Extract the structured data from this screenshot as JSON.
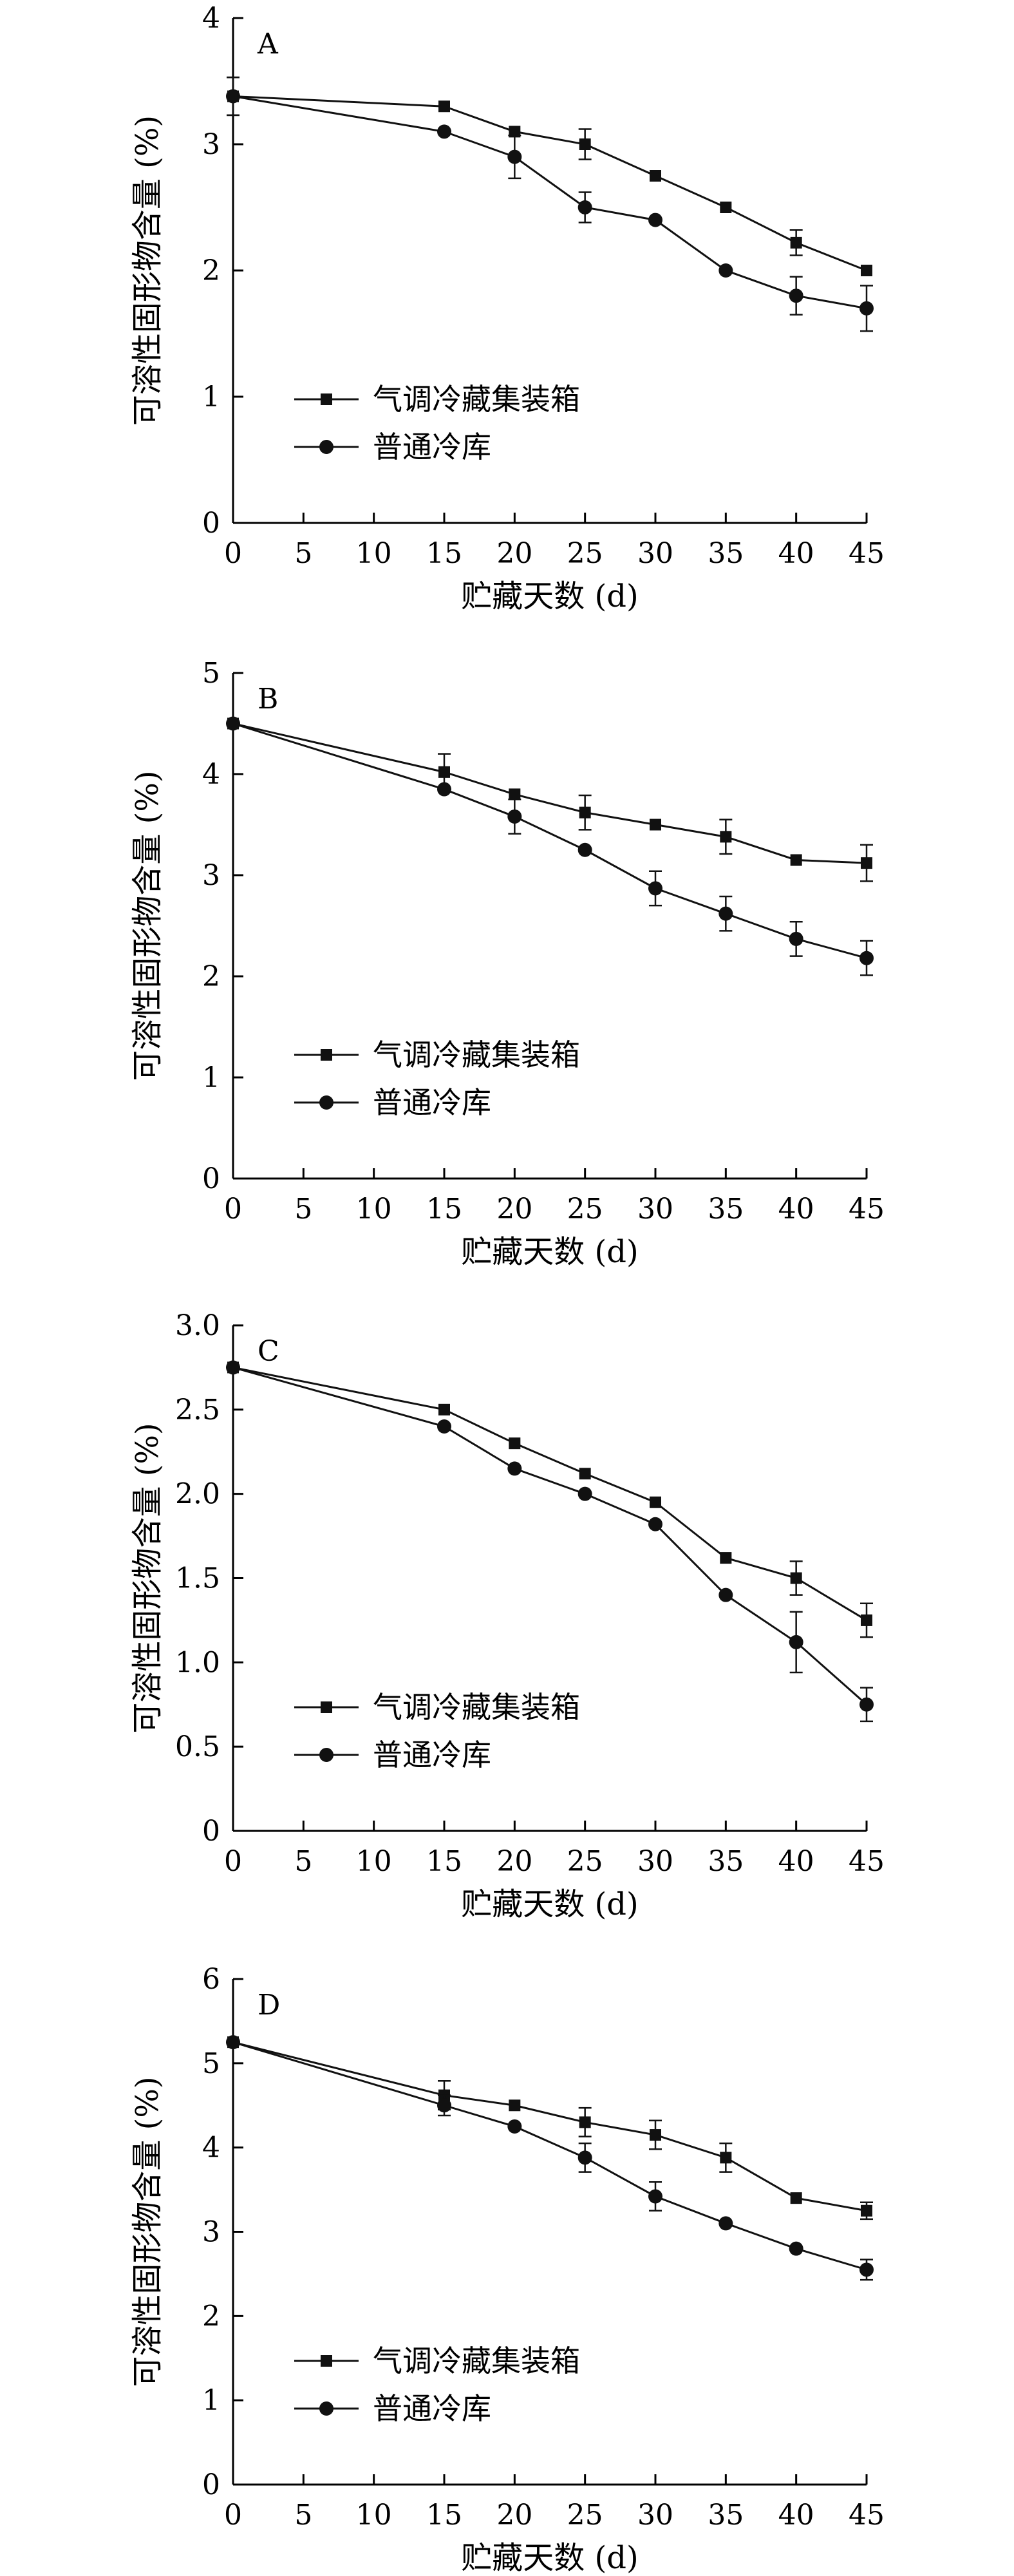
{
  "chart_data": [
    {
      "type": "line",
      "panel_label": "A",
      "title": "",
      "xlabel": "贮藏天数 (d)",
      "ylabel": "可溶性固形物含量 (%)",
      "x": [
        0,
        15,
        20,
        25,
        30,
        35,
        40,
        45
      ],
      "xlim": [
        0,
        45
      ],
      "xticks": [
        0,
        5,
        10,
        15,
        20,
        25,
        30,
        35,
        40,
        45
      ],
      "ylim": [
        0,
        4
      ],
      "yticks": [
        "0",
        "1",
        "2",
        "3",
        "4"
      ],
      "grid": false,
      "legend_position": "lower-left",
      "series": [
        {
          "name": "气调冷藏集装箱",
          "marker": "square",
          "values": [
            3.38,
            3.3,
            3.1,
            3.0,
            2.75,
            2.5,
            2.22,
            2.0
          ],
          "errors": [
            0.15,
            0.02,
            0.03,
            0.12,
            0.03,
            0.02,
            0.1,
            0.03
          ]
        },
        {
          "name": "普通冷库",
          "marker": "circle",
          "values": [
            3.38,
            3.1,
            2.9,
            2.5,
            2.4,
            2.0,
            1.8,
            1.7
          ],
          "errors": [
            0.15,
            0.02,
            0.17,
            0.12,
            0.02,
            0.02,
            0.15,
            0.18
          ]
        }
      ]
    },
    {
      "type": "line",
      "panel_label": "B",
      "title": "",
      "xlabel": "贮藏天数 (d)",
      "ylabel": "可溶性固形物含量 (%)",
      "x": [
        0,
        15,
        20,
        25,
        30,
        35,
        40,
        45
      ],
      "xlim": [
        0,
        45
      ],
      "xticks": [
        0,
        5,
        10,
        15,
        20,
        25,
        30,
        35,
        40,
        45
      ],
      "ylim": [
        0,
        5
      ],
      "yticks": [
        "0",
        "1",
        "2",
        "3",
        "4",
        "5"
      ],
      "grid": false,
      "legend_position": "lower-left",
      "series": [
        {
          "name": "气调冷藏集装箱",
          "marker": "square",
          "values": [
            4.5,
            4.02,
            3.8,
            3.62,
            3.5,
            3.38,
            3.15,
            3.12
          ],
          "errors": [
            0.02,
            0.18,
            0.03,
            0.17,
            0.03,
            0.17,
            0.03,
            0.18
          ]
        },
        {
          "name": "普通冷库",
          "marker": "circle",
          "values": [
            4.5,
            3.85,
            3.58,
            3.25,
            2.87,
            2.62,
            2.37,
            2.18
          ],
          "errors": [
            0.02,
            0.02,
            0.17,
            0.03,
            0.17,
            0.17,
            0.17,
            0.17
          ]
        }
      ]
    },
    {
      "type": "line",
      "panel_label": "C",
      "title": "",
      "xlabel": "贮藏天数 (d)",
      "ylabel": "可溶性固形物含量 (%)",
      "x": [
        0,
        15,
        20,
        25,
        30,
        35,
        40,
        45
      ],
      "xlim": [
        0,
        45
      ],
      "xticks": [
        0,
        5,
        10,
        15,
        20,
        25,
        30,
        35,
        40,
        45
      ],
      "ylim": [
        0,
        3
      ],
      "yticks": [
        "0",
        "0.5",
        "1.0",
        "1.5",
        "2.0",
        "2.5",
        "3.0"
      ],
      "grid": false,
      "legend_position": "lower-left",
      "series": [
        {
          "name": "气调冷藏集装箱",
          "marker": "square",
          "values": [
            2.75,
            2.5,
            2.3,
            2.12,
            1.95,
            1.62,
            1.5,
            1.25
          ],
          "errors": [
            0.02,
            0.01,
            0.01,
            0.01,
            0.01,
            0.01,
            0.1,
            0.1
          ]
        },
        {
          "name": "普通冷库",
          "marker": "circle",
          "values": [
            2.75,
            2.4,
            2.15,
            2.0,
            1.82,
            1.4,
            1.12,
            0.75
          ],
          "errors": [
            0.02,
            0.01,
            0.01,
            0.01,
            0.01,
            0.01,
            0.18,
            0.1
          ]
        }
      ]
    },
    {
      "type": "line",
      "panel_label": "D",
      "title": "",
      "xlabel": "贮藏天数 (d)",
      "ylabel": "可溶性固形物含量 (%)",
      "x": [
        0,
        15,
        20,
        25,
        30,
        35,
        40,
        45
      ],
      "xlim": [
        0,
        45
      ],
      "xticks": [
        0,
        5,
        10,
        15,
        20,
        25,
        30,
        35,
        40,
        45
      ],
      "ylim": [
        0,
        6
      ],
      "yticks": [
        "0",
        "1",
        "2",
        "3",
        "4",
        "5",
        "6"
      ],
      "grid": false,
      "legend_position": "lower-left",
      "series": [
        {
          "name": "气调冷藏集装箱",
          "marker": "square",
          "values": [
            5.25,
            4.62,
            4.5,
            4.3,
            4.15,
            3.88,
            3.4,
            3.25
          ],
          "errors": [
            0.03,
            0.17,
            0.03,
            0.17,
            0.17,
            0.17,
            0.03,
            0.1
          ]
        },
        {
          "name": "普通冷库",
          "marker": "circle",
          "values": [
            5.25,
            4.5,
            4.25,
            3.88,
            3.42,
            3.1,
            2.8,
            2.55
          ],
          "errors": [
            0.03,
            0.12,
            0.03,
            0.17,
            0.17,
            0.03,
            0.03,
            0.12
          ]
        }
      ]
    }
  ]
}
